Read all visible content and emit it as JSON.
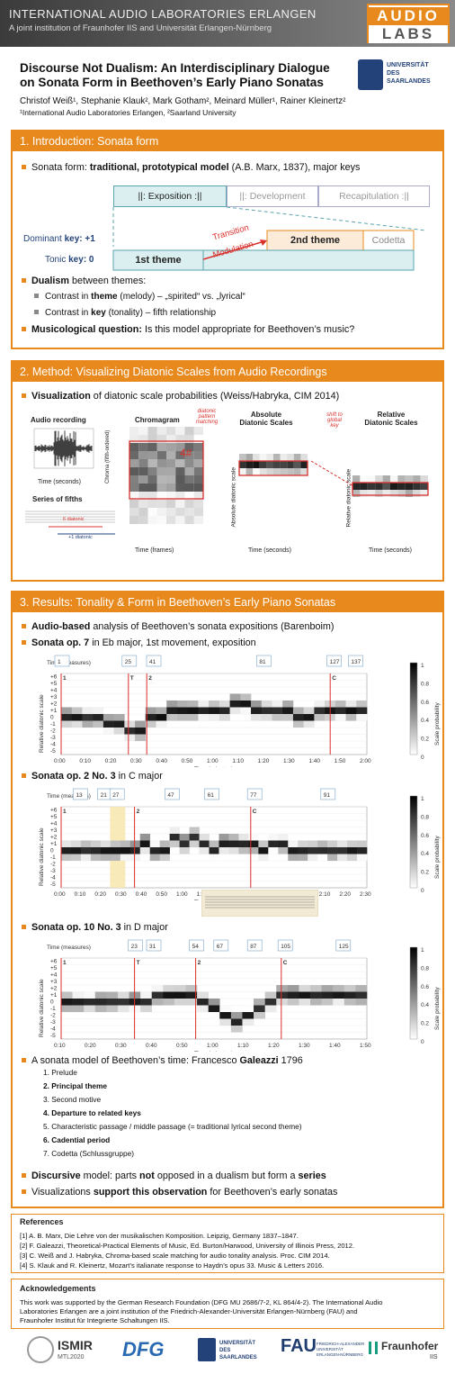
{
  "header": {
    "org": "INTERNATIONAL AUDIO LABORATORIES ERLANGEN",
    "sub": "A joint institution of Fraunhofer IIS and Universität Erlangen-Nürnberg",
    "logo_top": "AUDIO",
    "logo_bottom": "LABS"
  },
  "uds": {
    "l1": "UNIVERSITÄT",
    "l2": "DES",
    "l3": "SAARLANDES"
  },
  "title": {
    "line1": "Discourse Not Dualism: An Interdisciplinary Dialogue",
    "line2": "on Sonata Form in Beethoven’s Early Piano Sonatas"
  },
  "authors": "Christof Weiß¹, Stephanie Klauk², Mark Gotham², Meinard Müller¹, Rainer Kleinertz²",
  "affiliations": "¹International Audio Laboratories Erlangen, ²Saarland University",
  "s1": {
    "head": "1. Introduction: Sonata form",
    "b1a": "Sonata form: ",
    "b1b": "traditional, prototypical model",
    "b1c": " (A.B. Marx, 1837), major keys",
    "exposition": "||: Exposition :||",
    "development": "||: Development",
    "recap": "Recapitulation :||",
    "dominant": "Dominant ",
    "dominant_key": "key",
    ": ": "",
    "dom_val": ": +1",
    "tonic": "Tonic ",
    "tonic_key": "key",
    "ton_val": ": 0",
    "second_theme": "2nd theme",
    "codetta": "Codetta",
    "first_theme": "1st theme",
    "transition": "Transition",
    "modulation": "Modulation",
    "b2a": "Dualism",
    "b2b": " between themes:",
    "s1a": "Contrast in ",
    "s1b": "theme",
    "s1c": " (melody) – „spirited“ vs. „lyrical“",
    "s2a": "Contrast in ",
    "s2b": "key",
    "s2c": " (tonality) – fifth relationship",
    "b3a": "Musicological question:",
    "b3b": " Is this model appropriate for Beethoven’s music?"
  },
  "s2": {
    "head": "2. Method: Visualizing Diatonic Scales from Audio Recordings",
    "b1a": "Visualization",
    "b1b": " of diatonic scale probabilities (Weiss/Habryka, CIM 2014)",
    "audio": "Audio recording",
    "time_s": "Time (seconds)",
    "fifths": "Series of fifths",
    "diatonic6": "6 diatonic",
    "diatonic1": "+1 diatonic",
    "chromagram": "Chromagram",
    "chroma_axis": "Chroma (fifth-ordered)",
    "time_frames": "Time (frames)",
    "pattern": [
      "diatonic",
      "pattern",
      "matching"
    ],
    "four_sharp": "4#",
    "abs": [
      "Absolute",
      "Diatonic Scales"
    ],
    "abs_axis": "Absolute diatonic scale",
    "shift": [
      "shift to",
      "global",
      "key"
    ],
    "rel": [
      "Relative",
      "Diatonic Scales"
    ],
    "rel_axis": "Relative diatonic scale",
    "time_s2": "Time (seconds)",
    "time_s3": "Time (seconds)"
  },
  "s3": {
    "head": "3. Results: Tonality & Form in Beethoven’s Early Piano Sonatas",
    "b1a": "Audio-based",
    "b1b": " analysis of Beethoven’s sonata expositions (Barenboim)",
    "op7a": "Sonata op. 7",
    "op7b": " in Eb major, 1st movement, exposition",
    "op2a": "Sonata op. 2 No. 3",
    "op2b": " in C major",
    "op10a": "Sonata op. 10 No. 3",
    "op10b": " in D major",
    "gal_a": "A sonata model of Beethoven’s time: Francesco ",
    "gal_b": "Galeazzi",
    "gal_c": " 1796",
    "galeazzi": [
      {
        "n": "1. Prelude",
        "bold": false
      },
      {
        "n": "2. Principal theme",
        "bold": true
      },
      {
        "n": "3. Second motive",
        "bold": false
      },
      {
        "n": "4. Departure to related keys",
        "bold": true
      },
      {
        "n": "5. Characteristic passage / middle passage (= traditional lyrical second theme)",
        "bold": false
      },
      {
        "n": "6. Cadential period",
        "bold": true
      },
      {
        "n": "7. Codetta (Schlussgruppe)",
        "bold": false
      }
    ],
    "d1a": "Discursive",
    "d1b": " model: parts ",
    "d1c": "not",
    "d1d": " opposed in a dualism but form a ",
    "d1e": "series",
    "d2a": "Visualizations ",
    "d2b": "support this observation",
    "d2c": " for Beethoven’s early sonatas"
  },
  "chart_data": [
    {
      "type": "heatmap",
      "title": "Sonata op. 7",
      "ylabel": "Relative diatonic scale",
      "xlabel": "Time (minutes)",
      "measure_label": "Time (measures)",
      "y_ticks": [
        "+6",
        "+5",
        "+4",
        "+3",
        "+2",
        "+1",
        "0",
        "-1",
        "-2",
        "-3",
        "-4",
        "-5"
      ],
      "x_ticks": [
        "0:00",
        "0:10",
        "0:20",
        "0:30",
        "0:40",
        "0:50",
        "1:00",
        "1:10",
        "1:20",
        "1:30",
        "1:40",
        "1:50",
        "2:00"
      ],
      "measures": [
        "1",
        "25",
        "41",
        "81",
        "127",
        "137"
      ],
      "markers": [
        "1",
        "T",
        "2",
        "C"
      ],
      "colorbar": [
        "1",
        "0.8",
        "0.6",
        "0.4",
        "0.2",
        "0"
      ],
      "colorbar_label": "Scale probability"
    },
    {
      "type": "heatmap",
      "title": "Sonata op. 2 No. 3",
      "ylabel": "Relative diatonic scale",
      "xlabel": "Time (minutes)",
      "measure_label": "Time (measures)",
      "y_ticks": [
        "+6",
        "+5",
        "+4",
        "+3",
        "+2",
        "+1",
        "0",
        "-1",
        "-2",
        "-3",
        "-4",
        "-5"
      ],
      "x_ticks": [
        "0:00",
        "0:10",
        "0:20",
        "0:30",
        "0:40",
        "0:50",
        "1:00",
        "1:10",
        "1:20",
        "1:30",
        "1:40",
        "1:50",
        "2:00",
        "2:10",
        "2:20",
        "2:30"
      ],
      "measures": [
        "13",
        "21",
        "27",
        "47",
        "61",
        "77",
        "91"
      ],
      "markers": [
        "1",
        "2",
        "C"
      ],
      "colorbar": [
        "1",
        "0.8",
        "0.6",
        "0.4",
        "0.2",
        "0"
      ],
      "colorbar_label": "Scale probability"
    },
    {
      "type": "heatmap",
      "title": "Sonata op. 10 No. 3",
      "ylabel": "Relative diatonic scale",
      "xlabel": "Time (minutes)",
      "measure_label": "Time (measures)",
      "y_ticks": [
        "+6",
        "+5",
        "+4",
        "+3",
        "+2",
        "+1",
        "0",
        "-1",
        "-2",
        "-3",
        "-4",
        "-5"
      ],
      "x_ticks": [
        "0:10",
        "0:20",
        "0:30",
        "0:40",
        "0:50",
        "1:00",
        "1:10",
        "1:20",
        "1:30",
        "1:40",
        "1:50"
      ],
      "measures": [
        "23",
        "31",
        "54",
        "67",
        "87",
        "105",
        "125"
      ],
      "markers": [
        "1",
        "T",
        "2",
        "C"
      ],
      "colorbar": [
        "1",
        "0.8",
        "0.6",
        "0.4",
        "0.2",
        "0"
      ],
      "colorbar_label": "Scale probability"
    }
  ],
  "refs": {
    "head": "References",
    "r1": "[1] A. B. Marx, Die Lehre von der musikalischen Komposition. Leipzig, Germany 1837–1847.",
    "r2": "[2] F. Galeazzi, Theoretical-Practical Elements of Music, Ed. Burton/Harwood, University of Illinois Press, 2012.",
    "r3": "[3] C. Weiß and J. Habryka, Chroma-based scale matching for audio tonality analysis. Proc. CIM 2014.",
    "r4": "[4] S. Klauk and R. Kleinertz, Mozart’s italianate response to Haydn’s opus 33. Music & Letters 2016."
  },
  "ack": {
    "head": "Acknowledgements",
    "l1": "This work was supported by the German Research Foundation (DFG MU 2686/7-2, KL 864/4-2). The International Audio",
    "l2": "Laboratories Erlangen are a joint institution of the Friedrich-Alexander-Universität Erlangen-Nürnberg (FAU) and",
    "l3": "Fraunhofer Institut für Integrierte Schaltungen IIS."
  },
  "footer": {
    "ismir": "ISMIR",
    "ismir_sub": "MTL2020",
    "dfg": "DFG",
    "uds1": "UNIVERSITÄT",
    "uds2": "DES",
    "uds3": "SAARLANDES",
    "fau": "FAU",
    "fau_sub1": "FRIEDRICH-ALEXANDER",
    "fau_sub2": "UNIVERSITÄT",
    "fau_sub3": "ERLANGEN-NÜRNBERG",
    "fraunhofer": "Fraunhofer",
    "fraunhofer_sub": "IIS"
  },
  "colors": {
    "accent": "#e8891d",
    "teal": "#5aa5ae",
    "red": "#d9302c"
  }
}
